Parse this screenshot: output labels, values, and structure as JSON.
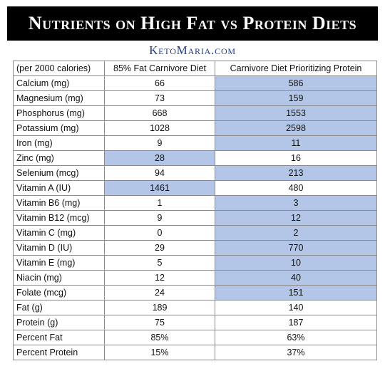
{
  "header": {
    "title": "Nutrients on High Fat vs Protein Diets",
    "brand": "KetoMaria.com"
  },
  "table": {
    "columns": [
      "(per 2000 calories)",
      "85% Fat Carnivore Diet",
      "Carnivore Diet Prioritizing Protein"
    ],
    "highlight_color": "#b4c6e7",
    "rows": [
      {
        "label": "Calcium (mg)",
        "fat": "66",
        "protein": "586",
        "highlight": "protein"
      },
      {
        "label": "Magnesium (mg)",
        "fat": "73",
        "protein": "159",
        "highlight": "protein"
      },
      {
        "label": "Phosphorus (mg)",
        "fat": "668",
        "protein": "1553",
        "highlight": "protein"
      },
      {
        "label": "Potassium (mg)",
        "fat": "1028",
        "protein": "2598",
        "highlight": "protein"
      },
      {
        "label": "Iron (mg)",
        "fat": "9",
        "protein": "11",
        "highlight": "protein"
      },
      {
        "label": "Zinc (mg)",
        "fat": "28",
        "protein": "16",
        "highlight": "fat"
      },
      {
        "label": "Selenium (mcg)",
        "fat": "94",
        "protein": "213",
        "highlight": "protein"
      },
      {
        "label": "Vitamin A (IU)",
        "fat": "1461",
        "protein": "480",
        "highlight": "fat"
      },
      {
        "label": "Vitamin B6 (mg)",
        "fat": "1",
        "protein": "3",
        "highlight": "protein"
      },
      {
        "label": "Vitamin B12 (mcg)",
        "fat": "9",
        "protein": "12",
        "highlight": "protein"
      },
      {
        "label": "Vitamin C (mg)",
        "fat": "0",
        "protein": "2",
        "highlight": "protein"
      },
      {
        "label": "Vitamin D (IU)",
        "fat": "29",
        "protein": "770",
        "highlight": "protein"
      },
      {
        "label": "Vitamin E (mg)",
        "fat": "5",
        "protein": "10",
        "highlight": "protein"
      },
      {
        "label": "Niacin (mg)",
        "fat": "12",
        "protein": "40",
        "highlight": "protein"
      },
      {
        "label": "Folate (mcg)",
        "fat": "24",
        "protein": "151",
        "highlight": "protein"
      },
      {
        "label": "Fat (g)",
        "fat": "189",
        "protein": "140",
        "highlight": "none"
      },
      {
        "label": "Protein (g)",
        "fat": "75",
        "protein": "187",
        "highlight": "none"
      },
      {
        "label": "Percent Fat",
        "fat": "85%",
        "protein": "63%",
        "highlight": "none"
      },
      {
        "label": "Percent Protein",
        "fat": "15%",
        "protein": "37%",
        "highlight": "none"
      }
    ]
  }
}
